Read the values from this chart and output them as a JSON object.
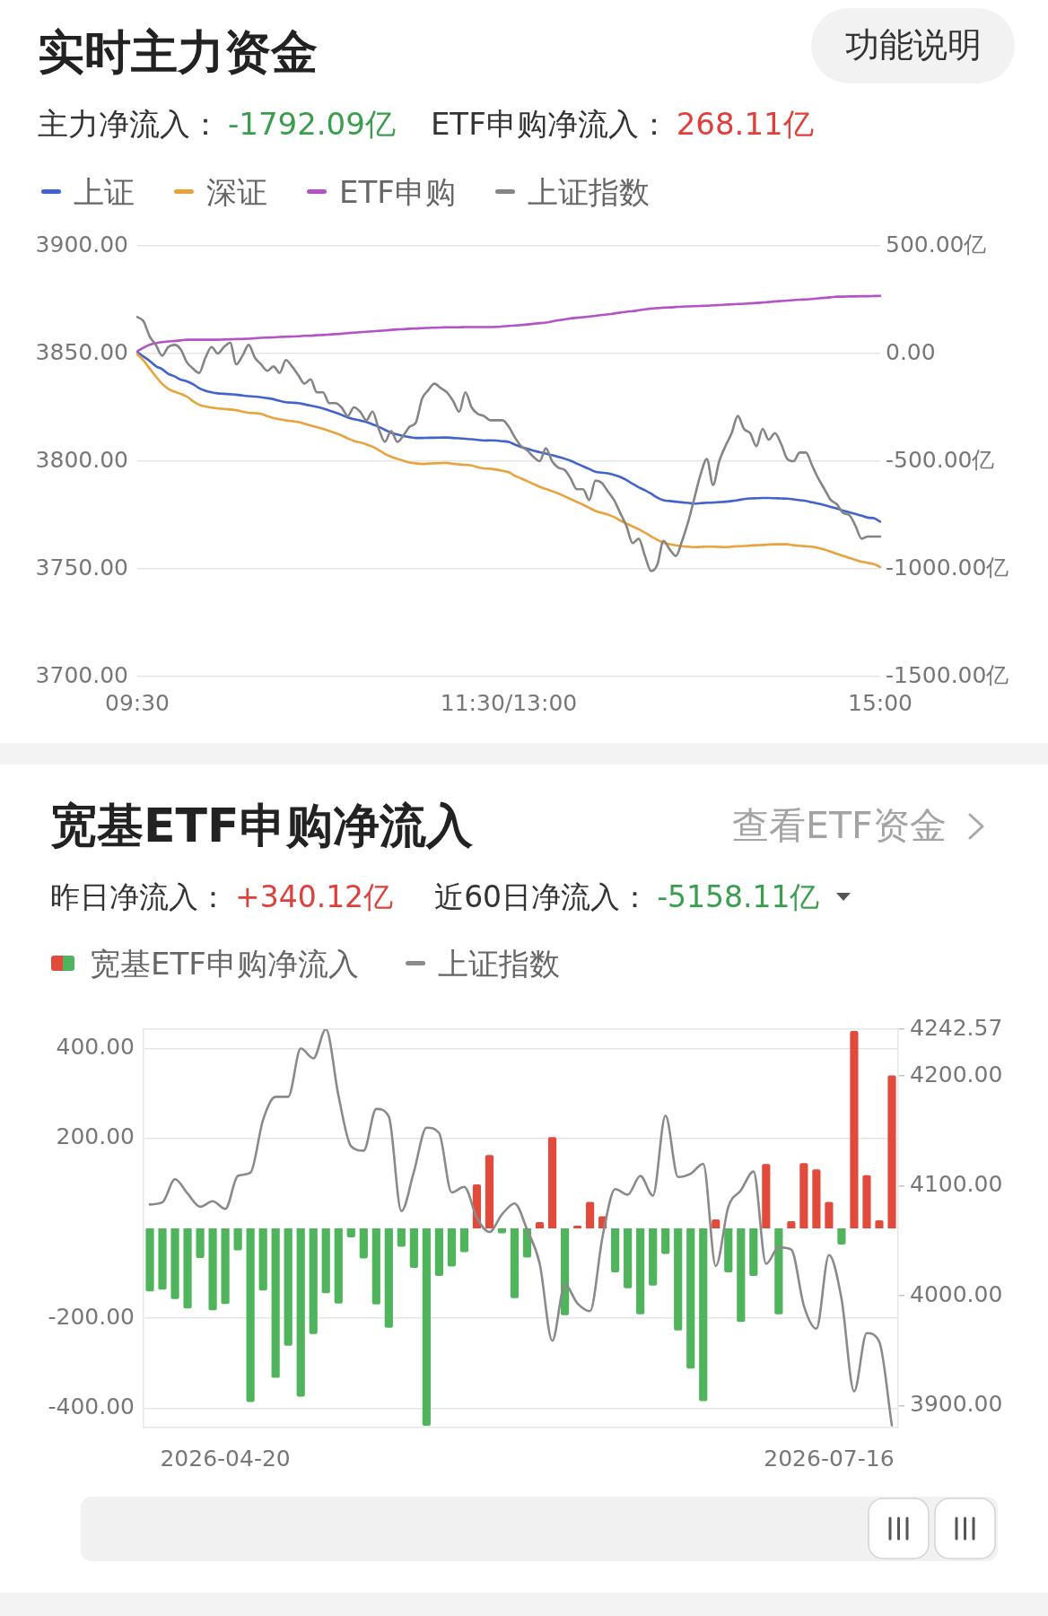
{
  "chart_data": [
    {
      "type": "line",
      "title": "实时主力资金",
      "annotations": [
        "功能说明",
        "主力净流入：",
        "-1792.09亿",
        "ETF申购净流入：",
        "268.11亿"
      ],
      "legend": "top left",
      "grid": "y",
      "categories": [
        "09:30",
        null,
        null,
        null,
        null,
        null,
        null,
        null,
        null,
        null,
        null,
        null,
        null,
        null,
        null,
        null,
        null,
        null,
        null,
        null,
        null,
        null,
        null,
        null,
        null,
        null,
        null,
        null,
        null,
        null,
        null,
        null,
        null,
        null,
        null,
        null,
        null,
        null,
        null,
        null,
        null,
        null,
        null,
        null,
        null,
        null,
        null,
        null,
        null,
        null,
        null,
        null,
        null,
        null,
        null,
        null,
        null,
        null,
        null,
        null,
        "11:30/13:00",
        null,
        null,
        null,
        null,
        null,
        null,
        null,
        null,
        null,
        null,
        null,
        null,
        null,
        null,
        null,
        null,
        null,
        null,
        null,
        null,
        null,
        null,
        null,
        null,
        null,
        null,
        null,
        null,
        null,
        null,
        null,
        null,
        null,
        null,
        null,
        null,
        null,
        null,
        null,
        null,
        null,
        null,
        null,
        null,
        null,
        null,
        null,
        null,
        null,
        null,
        null,
        null,
        null,
        null,
        null,
        null,
        null,
        null,
        null,
        "15:00"
      ],
      "ylim": [
        3700,
        3900
      ],
      "yticks": [
        {
          "value": 3700,
          "label": "3700.00"
        },
        {
          "value": 3750,
          "label": "3750.00"
        },
        {
          "value": 3800,
          "label": "3800.00"
        },
        {
          "value": 3850,
          "label": "3850.00"
        },
        {
          "value": 3900,
          "label": "3900.00"
        }
      ],
      "y2lim": [
        -1500,
        500
      ],
      "y2ticks": [
        {
          "value": -1500,
          "label": "-1500.00亿"
        },
        {
          "value": -1000,
          "label": "-1000.00亿"
        },
        {
          "value": -500,
          "label": "-500.00亿"
        },
        {
          "value": 0,
          "label": "0.00"
        },
        {
          "value": 500,
          "label": "500.00亿"
        }
      ],
      "series": [
        {
          "name": "上证",
          "color": "#4363cc",
          "axis": "y2",
          "values": [
            7,
            -14,
            -34,
            -59,
            -72,
            -94,
            -106,
            -121,
            -129,
            -142,
            -161,
            -173,
            -180,
            -185,
            -187,
            -189,
            -191,
            -195,
            -198,
            -200,
            -203,
            -207,
            -212,
            -220,
            -226,
            -228,
            -230,
            -236,
            -242,
            -248,
            -255,
            -265,
            -274,
            -285,
            -297,
            -305,
            -311,
            -318,
            -329,
            -340,
            -354,
            -368,
            -376,
            -383,
            -388,
            -392,
            -392,
            -391,
            -391,
            -390,
            -390,
            -392,
            -394,
            -396,
            -398,
            -401,
            -404,
            -403,
            -404,
            -407,
            -410,
            -423,
            -434,
            -442,
            -451,
            -458,
            -465,
            -472,
            -480,
            -488,
            -498,
            -511,
            -524,
            -536,
            -549,
            -553,
            -556,
            -564,
            -573,
            -587,
            -605,
            -621,
            -635,
            -651,
            -669,
            -681,
            -685,
            -688,
            -691,
            -694,
            -697,
            -695,
            -693,
            -692,
            -690,
            -688,
            -685,
            -681,
            -676,
            -673,
            -672,
            -671,
            -671,
            -672,
            -673,
            -674,
            -677,
            -681,
            -684,
            -691,
            -697,
            -704,
            -712,
            -720,
            -729,
            -737,
            -745,
            -753,
            -762,
            -765,
            -781
          ]
        },
        {
          "name": "深证",
          "color": "#e9a33e",
          "axis": "y2",
          "values": [
            -3,
            -32,
            -70,
            -107,
            -140,
            -164,
            -177,
            -187,
            -200,
            -221,
            -238,
            -246,
            -251,
            -255,
            -257,
            -260,
            -263,
            -270,
            -275,
            -277,
            -280,
            -291,
            -300,
            -305,
            -311,
            -314,
            -318,
            -326,
            -334,
            -342,
            -350,
            -359,
            -369,
            -380,
            -394,
            -406,
            -413,
            -422,
            -433,
            -448,
            -466,
            -479,
            -489,
            -498,
            -506,
            -510,
            -513,
            -511,
            -510,
            -509,
            -508,
            -512,
            -515,
            -517,
            -520,
            -528,
            -533,
            -535,
            -539,
            -545,
            -551,
            -568,
            -580,
            -593,
            -606,
            -619,
            -629,
            -639,
            -650,
            -663,
            -676,
            -689,
            -702,
            -716,
            -731,
            -740,
            -748,
            -759,
            -775,
            -789,
            -803,
            -816,
            -832,
            -849,
            -865,
            -879,
            -885,
            -891,
            -895,
            -897,
            -899,
            -898,
            -897,
            -897,
            -898,
            -899,
            -897,
            -895,
            -894,
            -892,
            -890,
            -889,
            -887,
            -886,
            -886,
            -886,
            -890,
            -893,
            -895,
            -897,
            -903,
            -910,
            -920,
            -930,
            -940,
            -949,
            -958,
            -967,
            -972,
            -978,
            -991
          ]
        },
        {
          "name": "ETF申购",
          "color": "#b453c8",
          "axis": "y2",
          "values": [
            10,
            27,
            41,
            48,
            53,
            56,
            58,
            61,
            64,
            64,
            64,
            64,
            64,
            64,
            65,
            66,
            67,
            68,
            69,
            71,
            73,
            74,
            75,
            77,
            78,
            79,
            80,
            82,
            83,
            85,
            86,
            88,
            90,
            92,
            95,
            97,
            99,
            101,
            103,
            105,
            107,
            110,
            112,
            113,
            115,
            116,
            118,
            119,
            120,
            121,
            122,
            122,
            122,
            123,
            123,
            123,
            123,
            123,
            124,
            126,
            128,
            130,
            132,
            135,
            138,
            141,
            144,
            149,
            154,
            158,
            163,
            166,
            169,
            172,
            175,
            179,
            182,
            186,
            190,
            194,
            197,
            201,
            205,
            209,
            211,
            213,
            214,
            216,
            218,
            219,
            220,
            221,
            222,
            224,
            225,
            227,
            228,
            230,
            231,
            233,
            235,
            237,
            239,
            242,
            244,
            246,
            248,
            250,
            251,
            253,
            256,
            259,
            261,
            264,
            264,
            265,
            265,
            266,
            266,
            267,
            268
          ]
        },
        {
          "name": "上证指数",
          "color": "#858585",
          "values": [
            3867,
            3865,
            3858,
            3854,
            3849,
            3853,
            3854,
            3852,
            3846,
            3843,
            3841,
            3848,
            3853,
            3850,
            3853,
            3855,
            3845,
            3849,
            3854,
            3848,
            3845,
            3842,
            3844,
            3841,
            3847,
            3844,
            3840,
            3836,
            3838,
            3832,
            3832,
            3827,
            3827,
            3825,
            3821,
            3825,
            3823,
            3819,
            3823,
            3815,
            3809,
            3814,
            3809,
            3812,
            3816,
            3818,
            3829,
            3833,
            3836,
            3834,
            3832,
            3828,
            3823,
            3832,
            3825,
            3822,
            3821,
            3819,
            3819,
            3819,
            3816,
            3811,
            3807,
            3805,
            3802,
            3800,
            3806,
            3800,
            3797,
            3796,
            3792,
            3787,
            3787,
            3782,
            3791,
            3790,
            3786,
            3782,
            3776,
            3770,
            3762,
            3764,
            3756,
            3749,
            3752,
            3763,
            3759,
            3756,
            3763,
            3772,
            3783,
            3794,
            3801,
            3789,
            3800,
            3807,
            3813,
            3821,
            3815,
            3813,
            3807,
            3815,
            3810,
            3813,
            3808,
            3801,
            3800,
            3804,
            3804,
            3798,
            3792,
            3787,
            3782,
            3780,
            3776,
            3775,
            3770,
            3764,
            3765,
            3765,
            3765
          ]
        }
      ]
    },
    {
      "type": "bar",
      "title": "宽基ETF申购净流入",
      "annotations": [
        "查看ETF资金",
        "昨日净流入：",
        "+340.12亿",
        "近60日净流入：",
        "-5158.11亿"
      ],
      "legend": "top left",
      "grid": "y",
      "categories": [
        null,
        null,
        null,
        null,
        null,
        null,
        "2026-04-20",
        null,
        null,
        null,
        null,
        null,
        null,
        null,
        null,
        null,
        null,
        null,
        null,
        null,
        null,
        null,
        null,
        null,
        null,
        null,
        null,
        null,
        null,
        null,
        null,
        null,
        null,
        null,
        null,
        null,
        null,
        null,
        null,
        null,
        null,
        null,
        null,
        null,
        null,
        null,
        null,
        null,
        null,
        null,
        null,
        null,
        null,
        null,
        "2026-07-16",
        null,
        null,
        null,
        null,
        null
      ],
      "ylim": [
        -443,
        443
      ],
      "yticks": [
        {
          "value": -443,
          "label": null
        },
        {
          "value": -400,
          "label": "-400.00"
        },
        {
          "value": -200,
          "label": "-200.00"
        },
        {
          "value": 200,
          "label": "200.00"
        },
        {
          "value": 400,
          "label": "400.00"
        },
        {
          "value": 443,
          "label": null
        }
      ],
      "y2lim": [
        3880,
        4242.57
      ],
      "y2ticks": [
        {
          "value": 3900,
          "label": "3900.00"
        },
        {
          "value": 4000,
          "label": "4000.00"
        },
        {
          "value": 4100,
          "label": "4100.00"
        },
        {
          "value": 4200,
          "label": "4200.00"
        },
        4242.57
      ],
      "series": [
        {
          "name": "宽基ETF申购净流入",
          "type": "bar",
          "colors": [
            "#4fb45c",
            "#4fb45c",
            "#4fb45c",
            "#4fb45c",
            "#4fb45c",
            "#4fb45c",
            "#4fb45c",
            "#4fb45c",
            "#4fb45c",
            "#4fb45c",
            "#4fb45c",
            "#4fb45c",
            "#4fb45c",
            "#4fb45c",
            "#4fb45c",
            "#4fb45c",
            "#4fb45c",
            "#4fb45c",
            "#4fb45c",
            "#4fb45c",
            "#4fb45c",
            "#4fb45c",
            "#4fb45c",
            "#4fb45c",
            "#4fb45c",
            "#4fb45c",
            "#e24b3c",
            "#e24b3c",
            "#4fb45c",
            "#4fb45c",
            "#4fb45c",
            "#e24b3c",
            "#e24b3c",
            "#4fb45c",
            "#e24b3c",
            "#e24b3c",
            "#e24b3c",
            "#4fb45c",
            "#4fb45c",
            "#4fb45c",
            "#4fb45c",
            "#4fb45c",
            "#4fb45c",
            "#4fb45c",
            "#4fb45c",
            "#e24b3c",
            "#4fb45c",
            "#4fb45c",
            "#4fb45c",
            "#e24b3c",
            "#4fb45c",
            "#e24b3c",
            "#e24b3c",
            "#e24b3c",
            "#e24b3c",
            "#4fb45c",
            "#e24b3c",
            "#e24b3c",
            "#e24b3c",
            "#e24b3c"
          ],
          "values": [
            -140,
            -136,
            -157,
            -178,
            -66,
            -182,
            -168,
            -49,
            -386,
            -138,
            -332,
            -261,
            -374,
            -235,
            -144,
            -167,
            -20,
            -67,
            -169,
            -221,
            -41,
            -88,
            -439,
            -106,
            -85,
            -53,
            98,
            163,
            -11,
            -155,
            -65,
            14,
            203,
            -193,
            6,
            59,
            27,
            -98,
            -133,
            -191,
            -127,
            -57,
            -227,
            -312,
            -384,
            20,
            -98,
            -208,
            -106,
            143,
            -191,
            16,
            145,
            131,
            59,
            -36,
            439,
            118,
            18,
            340
          ]
        },
        {
          "name": "上证指数",
          "type": "line",
          "axis": "y2",
          "color": "#8a8a8a",
          "values": [
            4083,
            4085,
            4106,
            4093,
            4081,
            4086,
            4079,
            4109,
            4112,
            4160,
            4181,
            4181,
            4225,
            4216,
            4242.57,
            4182,
            4136,
            4132,
            4170,
            4163,
            4077,
            4113,
            4153,
            4148,
            4094,
            4099,
            4071,
            4058,
            4074,
            4084,
            4060,
            4029,
            3959,
            4010,
            3993,
            3986,
            4054,
            4097,
            4092,
            4109,
            4091,
            4164,
            4108,
            4111,
            4120,
            4027,
            4081,
            4096,
            4113,
            4029,
            4044,
            4042,
            3991,
            3970,
            4037,
            3997,
            3913,
            3966,
            3958,
            3882
          ]
        }
      ]
    }
  ]
}
